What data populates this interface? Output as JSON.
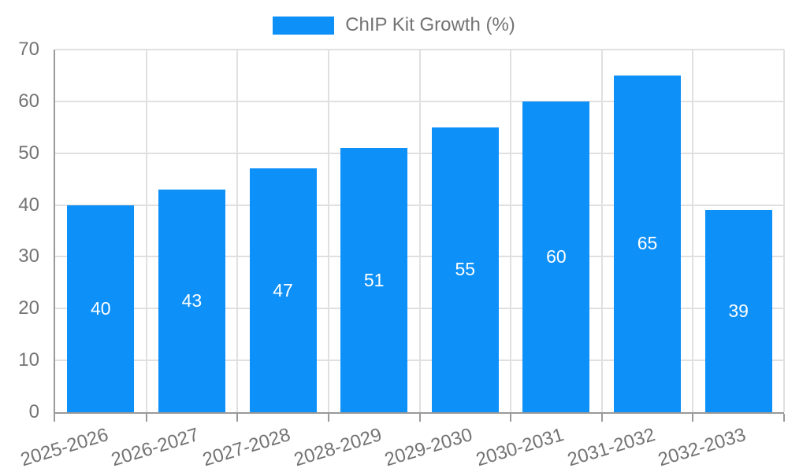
{
  "chart_data": {
    "type": "bar",
    "title": "",
    "categories": [
      "2025-2026",
      "2026-2027",
      "2027-2028",
      "2028-2029",
      "2029-2030",
      "2030-2031",
      "2031-2032",
      "2032-2033"
    ],
    "series": [
      {
        "name": "ChIP Kit Growth (%)",
        "values": [
          40,
          43,
          47,
          51,
          55,
          60,
          65,
          39
        ]
      }
    ],
    "xlabel": "",
    "ylabel": "",
    "ylim": [
      0,
      70
    ],
    "yticks": [
      0,
      10,
      20,
      30,
      40,
      50,
      60,
      70
    ],
    "grid": true,
    "legend_position": "top-center",
    "bar_color": "#0E90F9",
    "value_label_color": "#FFFFFF"
  },
  "colors": {
    "grid": "#E0E0E0",
    "axis": "#999999",
    "tick_text": "#737373"
  }
}
